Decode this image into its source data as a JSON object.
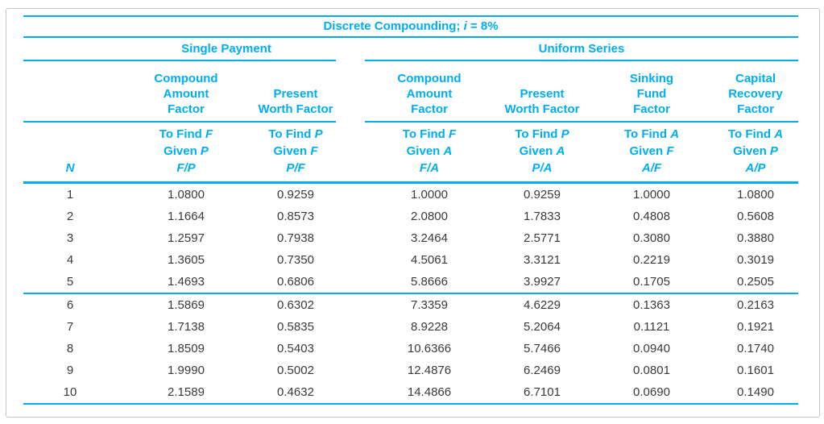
{
  "colors": {
    "accent": "#00AEEF",
    "data_text": "#3A3A3A",
    "frame_border": "#C4C4C4",
    "background": "#FFFFFF"
  },
  "table": {
    "title": {
      "text_before_var": "Discrete Compounding; ",
      "var": "i",
      "text_after_var": " = 8%"
    },
    "group_headers": {
      "single_payment": "Single Payment",
      "uniform_series": "Uniform Series"
    },
    "n_header": "N",
    "columns": [
      {
        "id": "fp",
        "group": "single_payment",
        "factor_lines": [
          "Compound",
          "Amount",
          "Factor"
        ],
        "to_find": "To Find",
        "to_find_var": "F",
        "given": "Given",
        "given_var": "P",
        "ratio": "F/P"
      },
      {
        "id": "pf",
        "group": "single_payment",
        "factor_lines": [
          "Present",
          "Worth Factor"
        ],
        "to_find": "To Find",
        "to_find_var": "P",
        "given": "Given",
        "given_var": "F",
        "ratio": "P/F"
      },
      {
        "id": "fa",
        "group": "uniform_series",
        "factor_lines": [
          "Compound",
          "Amount",
          "Factor"
        ],
        "to_find": "To Find",
        "to_find_var": "F",
        "given": "Given",
        "given_var": "A",
        "ratio": "F/A"
      },
      {
        "id": "pa",
        "group": "uniform_series",
        "factor_lines": [
          "Present",
          "Worth Factor"
        ],
        "to_find": "To Find",
        "to_find_var": "P",
        "given": "Given",
        "given_var": "A",
        "ratio": "P/A"
      },
      {
        "id": "af",
        "group": "uniform_series",
        "factor_lines": [
          "Sinking",
          "Fund",
          "Factor"
        ],
        "to_find": "To Find",
        "to_find_var": "A",
        "given": "Given",
        "given_var": "F",
        "ratio": "A/F"
      },
      {
        "id": "ap",
        "group": "uniform_series",
        "factor_lines": [
          "Capital",
          "Recovery",
          "Factor"
        ],
        "to_find": "To Find",
        "to_find_var": "A",
        "given": "Given",
        "given_var": "P",
        "ratio": "A/P"
      }
    ],
    "rows": [
      {
        "n": "1",
        "fp": "1.0800",
        "pf": "0.9259",
        "fa": "1.0000",
        "pa": "0.9259",
        "af": "1.0000",
        "ap": "1.0800"
      },
      {
        "n": "2",
        "fp": "1.1664",
        "pf": "0.8573",
        "fa": "2.0800",
        "pa": "1.7833",
        "af": "0.4808",
        "ap": "0.5608"
      },
      {
        "n": "3",
        "fp": "1.2597",
        "pf": "0.7938",
        "fa": "3.2464",
        "pa": "2.5771",
        "af": "0.3080",
        "ap": "0.3880"
      },
      {
        "n": "4",
        "fp": "1.3605",
        "pf": "0.7350",
        "fa": "4.5061",
        "pa": "3.3121",
        "af": "0.2219",
        "ap": "0.3019"
      },
      {
        "n": "5",
        "fp": "1.4693",
        "pf": "0.6806",
        "fa": "5.8666",
        "pa": "3.9927",
        "af": "0.1705",
        "ap": "0.2505"
      },
      {
        "n": "6",
        "fp": "1.5869",
        "pf": "0.6302",
        "fa": "7.3359",
        "pa": "4.6229",
        "af": "0.1363",
        "ap": "0.2163"
      },
      {
        "n": "7",
        "fp": "1.7138",
        "pf": "0.5835",
        "fa": "8.9228",
        "pa": "5.2064",
        "af": "0.1121",
        "ap": "0.1921"
      },
      {
        "n": "8",
        "fp": "1.8509",
        "pf": "0.5403",
        "fa": "10.6366",
        "pa": "5.7466",
        "af": "0.0940",
        "ap": "0.1740"
      },
      {
        "n": "9",
        "fp": "1.9990",
        "pf": "0.5002",
        "fa": "12.4876",
        "pa": "6.2469",
        "af": "0.0801",
        "ap": "0.1601"
      },
      {
        "n": "10",
        "fp": "2.1589",
        "pf": "0.4632",
        "fa": "14.4866",
        "pa": "6.7101",
        "af": "0.0690",
        "ap": "0.1490"
      }
    ]
  }
}
